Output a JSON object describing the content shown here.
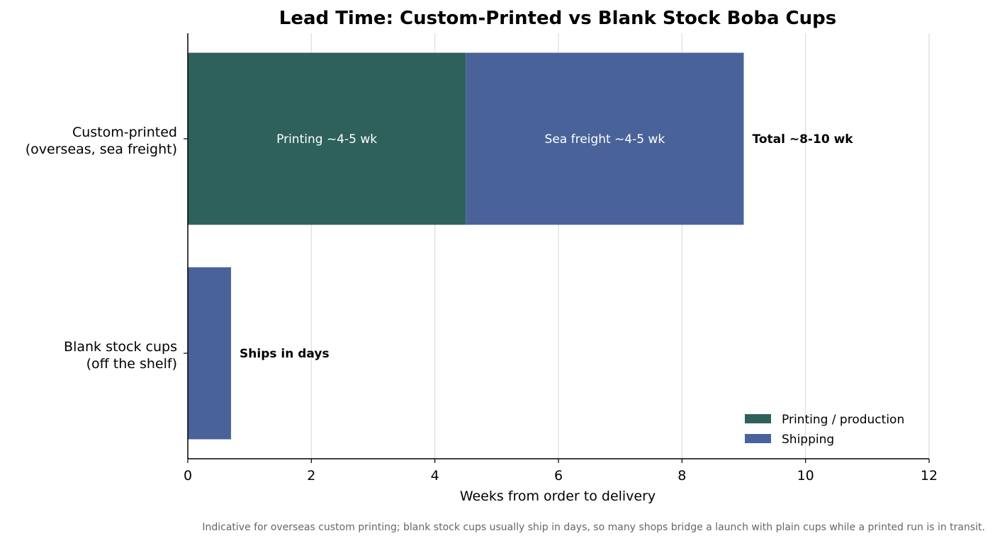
{
  "chart_data": {
    "type": "bar",
    "orientation": "horizontal",
    "stacked": true,
    "title": "Lead Time: Custom-Printed vs Blank Stock Boba Cups",
    "xlabel": "Weeks from order to delivery",
    "ylabel": "",
    "xlim": [
      0,
      12
    ],
    "xticks": [
      0,
      2,
      4,
      6,
      8,
      10,
      12
    ],
    "grid": "vertical",
    "legend_position": "bottom-right",
    "categories": [
      [
        "Custom-printed",
        "(overseas, sea freight)"
      ],
      [
        "Blank stock cups",
        "(off the shelf)"
      ]
    ],
    "series": [
      {
        "name": "Printing / production",
        "color": "#2e615b",
        "values": [
          4.5,
          0
        ]
      },
      {
        "name": "Shipping",
        "color": "#49639a",
        "values": [
          4.5,
          0.7
        ]
      }
    ],
    "segment_labels": [
      [
        "Printing ~4-5 wk",
        "Sea freight ~4-5 wk"
      ],
      [
        "",
        ""
      ]
    ],
    "annotations": [
      "Total ~8-10 wk",
      "Ships in days"
    ],
    "footnote": "Indicative for overseas custom printing; blank stock cups usually ship in days, so many shops bridge a launch with plain cups while a printed run is in transit."
  }
}
